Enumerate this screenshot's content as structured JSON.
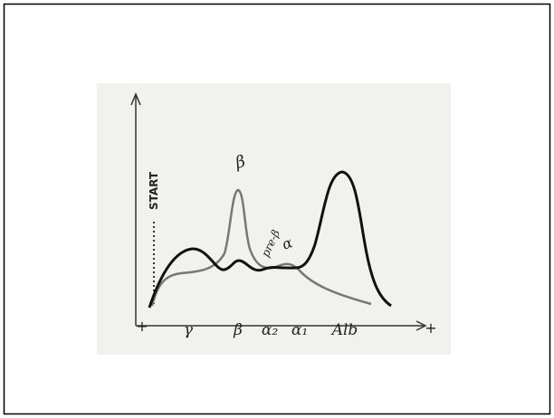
{
  "axis": {
    "start_label": "START",
    "left_pole": "+",
    "right_pole": "+",
    "fractions": [
      "γ",
      "β",
      "α₂",
      "α₁",
      "Alb"
    ]
  },
  "peak_labels": [
    "β",
    "pre-β",
    "α"
  ]
}
